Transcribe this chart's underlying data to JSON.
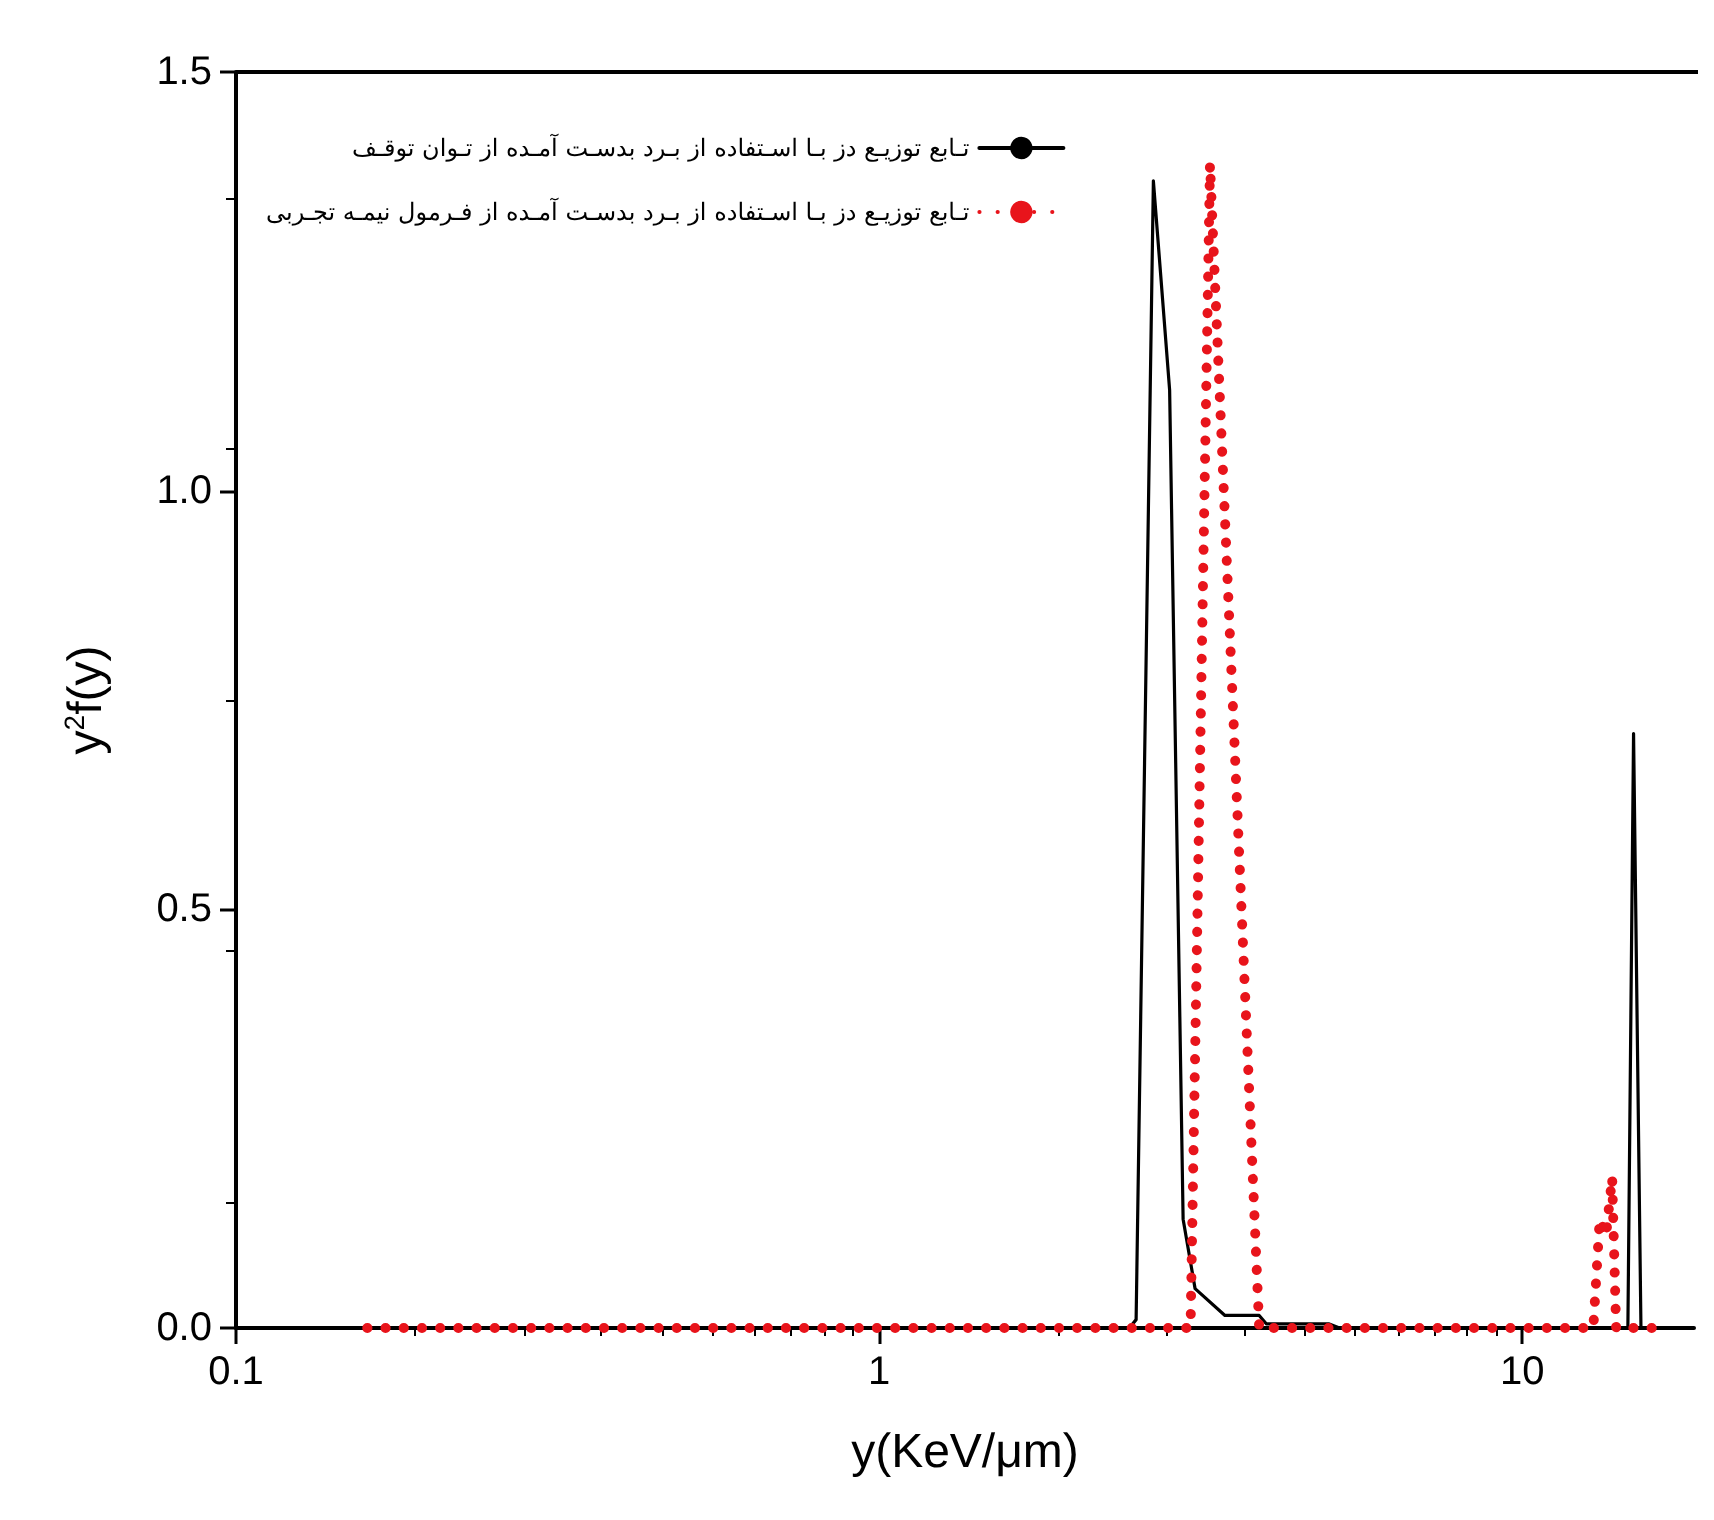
{
  "chart_data": {
    "type": "line",
    "xlabel": "y(KeV/μm)",
    "ylabel": "y$^{2}$f(y)",
    "log": "x",
    "xlim": [
      0.1,
      18.5
    ],
    "xticks": [
      0.1,
      1,
      10
    ],
    "ylim": [
      0,
      1.5
    ],
    "yticks": [
      {
        "value": 0,
        "label": "0.0"
      },
      {
        "value": 0.5,
        "label": "0.5"
      },
      {
        "value": 1,
        "label": "1.0"
      },
      {
        "value": 1.5,
        "label": "1.5"
      }
    ],
    "grid": false,
    "legend": "top left",
    "marker": "none",
    "series": [
      {
        "name": "تـابع توزیـع دز بـا اسـتفاده از بـرد بدسـت آمـده از تـوان توقـف",
        "color": "#000000",
        "line_style": "solid",
        "x": [
          0.16,
          2.45,
          2.51,
          2.67,
          2.83,
          2.97,
          3.1,
          3.45,
          3.9,
          4.0,
          5.0,
          5.2,
          14.6,
          14.9,
          15.3,
          16
        ],
        "values": [
          0,
          0,
          0.01,
          1.37,
          1.12,
          0.13,
          0.047,
          0.015,
          0.015,
          0.005,
          0.005,
          0,
          0,
          0.71,
          0,
          0
        ]
      },
      {
        "name": "تـابع توزیـع دز بـا اسـتفاده از بـرد بدسـت آمـده از فـرمول نیمـه تجـربی",
        "color": "#e8141b",
        "line_style": "dotted",
        "x": [
          0.16,
          3.05,
          3.27,
          3.9,
          12.9,
          13.2,
          13.5,
          13.8,
          14.0,
          16
        ],
        "values": [
          0,
          0,
          1.39,
          0,
          0,
          0.13,
          0.11,
          0.18,
          0,
          0
        ]
      }
    ]
  }
}
